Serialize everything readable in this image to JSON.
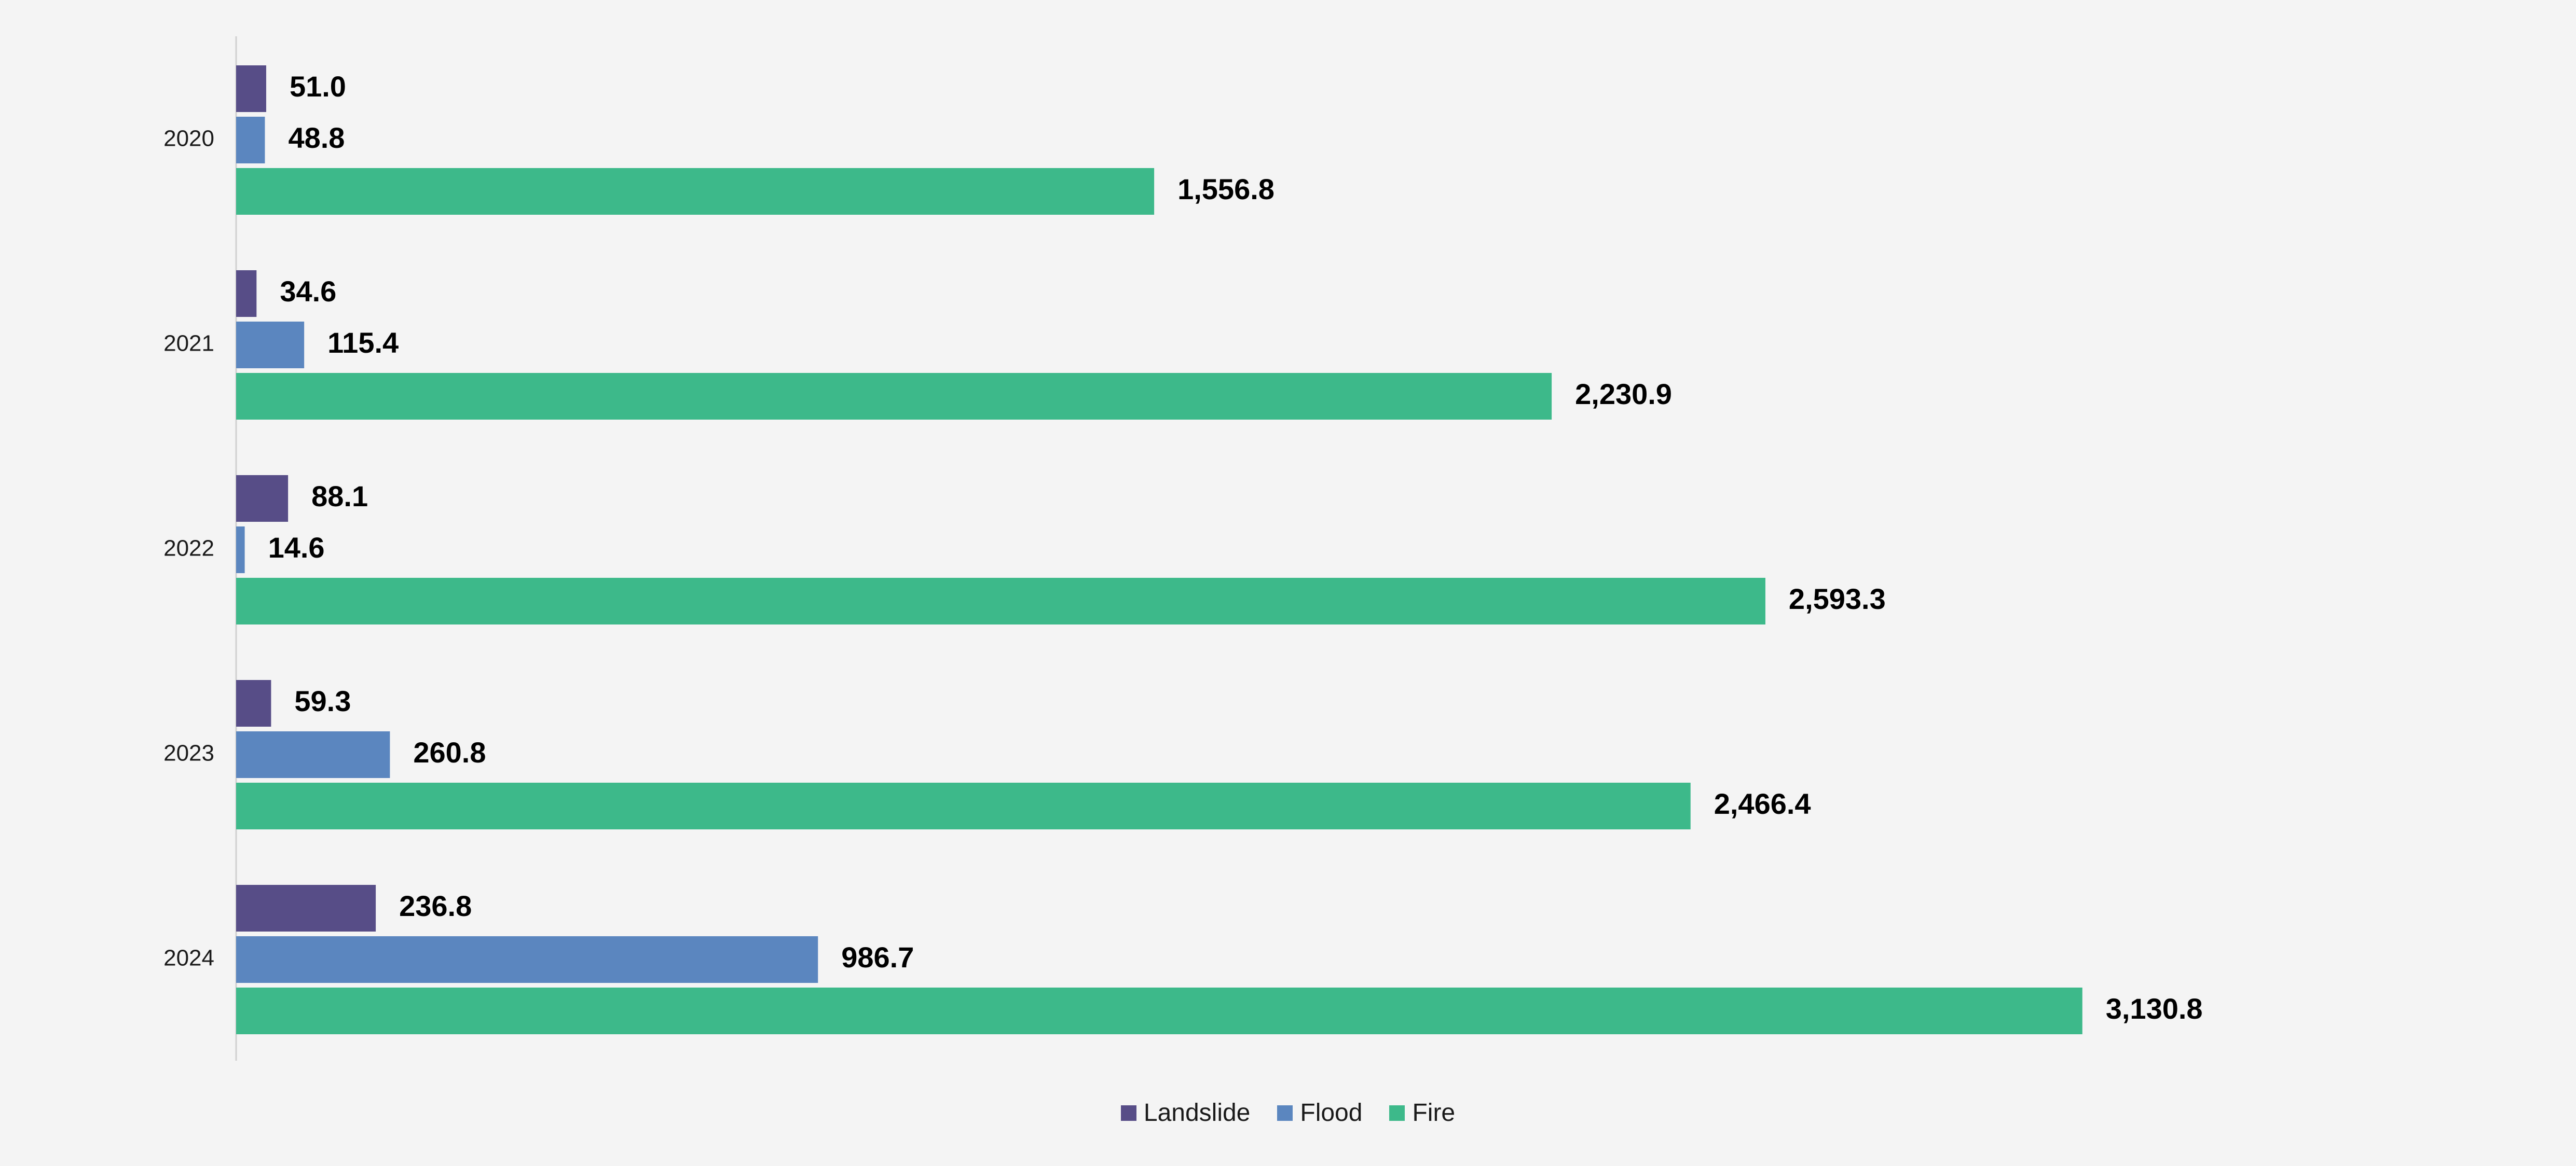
{
  "chart_data": {
    "type": "bar",
    "orientation": "horizontal",
    "categories": [
      "2020",
      "2021",
      "2022",
      "2023",
      "2024"
    ],
    "series": [
      {
        "name": "Landslide",
        "color": "#574d87",
        "values": [
          51.0,
          34.6,
          88.1,
          59.3,
          236.8
        ],
        "labels": [
          "51.0",
          "34.6",
          "88.1",
          "59.3",
          "236.8"
        ]
      },
      {
        "name": "Flood",
        "color": "#5b86bf",
        "values": [
          48.8,
          115.4,
          14.6,
          260.8,
          986.7
        ],
        "labels": [
          "48.8",
          "115.4",
          "14.6",
          "260.8",
          "986.7"
        ]
      },
      {
        "name": "Fire",
        "color": "#3db98a",
        "values": [
          1556.8,
          2230.9,
          2593.3,
          2466.4,
          3130.8
        ],
        "labels": [
          "1,556.8",
          "2,230.9",
          "2,593.3",
          "2,466.4",
          "3,130.8"
        ]
      }
    ],
    "title": "",
    "xlabel": "",
    "ylabel": "",
    "xlim": [
      0,
      3300
    ],
    "grid": false,
    "legend": "bottom-center",
    "data_labels": true
  }
}
